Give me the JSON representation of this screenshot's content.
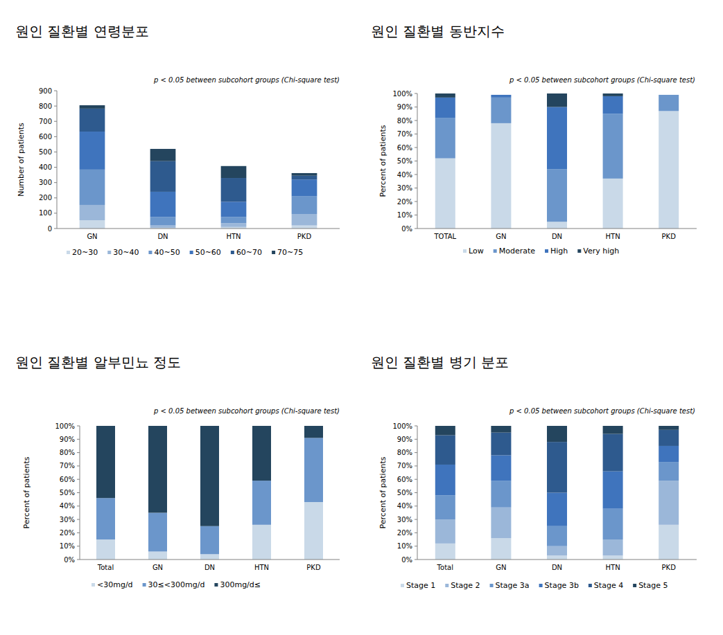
{
  "chart_data": [
    {
      "type": "bar",
      "stacked": true,
      "legend": "bottom",
      "grid": false,
      "title": "원인 질환별 연령분포",
      "annotation": "p < 0.05 between subcohort groups (Chi-square test)",
      "ylabel": "Number of patients",
      "categories": [
        "GN",
        "DN",
        "HTN",
        "PKD"
      ],
      "ylim": [
        0,
        900
      ],
      "yticks": [
        0,
        100,
        200,
        300,
        400,
        500,
        600,
        700,
        800,
        900
      ],
      "series": [
        {
          "name": "20~30",
          "color": "#c9d9e8",
          "values": [
            54,
            5,
            10,
            20
          ]
        },
        {
          "name": "30~40",
          "color": "#9bb7d9",
          "values": [
            100,
            15,
            25,
            75
          ]
        },
        {
          "name": "40~50",
          "color": "#6b96cb",
          "values": [
            231,
            55,
            40,
            115
          ]
        },
        {
          "name": "50~60",
          "color": "#3f74bd",
          "values": [
            248,
            165,
            100,
            110
          ]
        },
        {
          "name": "60~70",
          "color": "#2e5a8e",
          "values": [
            150,
            200,
            155,
            25
          ]
        },
        {
          "name": "70~75",
          "color": "#24455e",
          "values": [
            22,
            80,
            78,
            17
          ]
        }
      ]
    },
    {
      "type": "bar",
      "stacked": true,
      "legend": "bottom",
      "grid": false,
      "title": "원인 질환별 동반지수",
      "annotation": "p < 0.05 between subcohort groups (Chi-square test)",
      "ylabel": "Percent of patients",
      "categories": [
        "TOTAL",
        "GN",
        "DN",
        "HTN",
        "PKD"
      ],
      "ylim": [
        0,
        100
      ],
      "yticks": [
        {
          "value": 0,
          "label": "0%"
        },
        {
          "value": 10,
          "label": "10%"
        },
        {
          "value": 20,
          "label": "20%"
        },
        {
          "value": 30,
          "label": "30%"
        },
        {
          "value": 40,
          "label": "40%"
        },
        {
          "value": 50,
          "label": "50%"
        },
        {
          "value": 60,
          "label": "60%"
        },
        {
          "value": 70,
          "label": "70%"
        },
        {
          "value": 80,
          "label": "80%"
        },
        {
          "value": 90,
          "label": "90%"
        },
        {
          "value": 100,
          "label": "100%"
        }
      ],
      "series": [
        {
          "name": "Low",
          "color": "#c9d9e8",
          "values": [
            52,
            78,
            5,
            37,
            87
          ]
        },
        {
          "name": "Moderate",
          "color": "#6b96cb",
          "values": [
            30,
            19,
            39,
            48,
            12
          ]
        },
        {
          "name": "High",
          "color": "#3f74bd",
          "values": [
            15,
            2,
            46,
            13,
            0
          ]
        },
        {
          "name": "Very high",
          "color": "#24455e",
          "values": [
            3,
            0,
            10,
            2,
            0
          ]
        }
      ]
    },
    {
      "type": "bar",
      "stacked": true,
      "legend": "bottom",
      "grid": false,
      "title": "원인 질환별 알부민뇨 정도",
      "annotation": "p < 0.05 between subcohort groups (Chi-square test)",
      "ylabel": "Percent of patients",
      "categories": [
        "Total",
        "GN",
        "DN",
        "HTN",
        "PKD"
      ],
      "ylim": [
        0,
        100
      ],
      "yticks": [
        {
          "value": 0,
          "label": "0%"
        },
        {
          "value": 10,
          "label": "10%"
        },
        {
          "value": 20,
          "label": "20%"
        },
        {
          "value": 30,
          "label": "30%"
        },
        {
          "value": 40,
          "label": "40%"
        },
        {
          "value": 50,
          "label": "50%"
        },
        {
          "value": 60,
          "label": "60%"
        },
        {
          "value": 70,
          "label": "70%"
        },
        {
          "value": 80,
          "label": "80%"
        },
        {
          "value": 90,
          "label": "90%"
        },
        {
          "value": 100,
          "label": "100%"
        }
      ],
      "series": [
        {
          "name": "<30mg/d",
          "color": "#c9d9e8",
          "values": [
            15,
            6,
            4,
            26,
            43
          ]
        },
        {
          "name": "30≤<300mg/d",
          "color": "#6b96cb",
          "values": [
            31,
            29,
            21,
            33,
            48
          ]
        },
        {
          "name": "300mg/d≤",
          "color": "#24455e",
          "values": [
            54,
            65,
            75,
            41,
            9
          ]
        }
      ]
    },
    {
      "type": "bar",
      "stacked": true,
      "legend": "bottom",
      "grid": false,
      "title": "원인 질환별 병기 분포",
      "annotation": "p < 0.05 between subcohort groups (Chi-square test)",
      "ylabel": "Percent of patients",
      "categories": [
        "Total",
        "GN",
        "DN",
        "HTN",
        "PKD"
      ],
      "ylim": [
        0,
        100
      ],
      "yticks": [
        {
          "value": 0,
          "label": "0%"
        },
        {
          "value": 10,
          "label": "10%"
        },
        {
          "value": 20,
          "label": "20%"
        },
        {
          "value": 30,
          "label": "30%"
        },
        {
          "value": 40,
          "label": "40%"
        },
        {
          "value": 50,
          "label": "50%"
        },
        {
          "value": 60,
          "label": "60%"
        },
        {
          "value": 70,
          "label": "70%"
        },
        {
          "value": 80,
          "label": "80%"
        },
        {
          "value": 90,
          "label": "90%"
        },
        {
          "value": 100,
          "label": "100%"
        }
      ],
      "series": [
        {
          "name": "Stage 1",
          "color": "#c9d9e8",
          "values": [
            12,
            16,
            3,
            3,
            26
          ]
        },
        {
          "name": "Stage 2",
          "color": "#9bb7d9",
          "values": [
            18,
            23,
            7,
            12,
            33
          ]
        },
        {
          "name": "Stage 3a",
          "color": "#6b96cb",
          "values": [
            18,
            20,
            15,
            23,
            14
          ]
        },
        {
          "name": "Stage 3b",
          "color": "#3f74bd",
          "values": [
            23,
            19,
            25,
            28,
            12
          ]
        },
        {
          "name": "Stage 4",
          "color": "#2e5a8e",
          "values": [
            22,
            17,
            38,
            28,
            12
          ]
        },
        {
          "name": "Stage 5",
          "color": "#24455e",
          "values": [
            7,
            5,
            12,
            6,
            3
          ]
        }
      ]
    }
  ]
}
